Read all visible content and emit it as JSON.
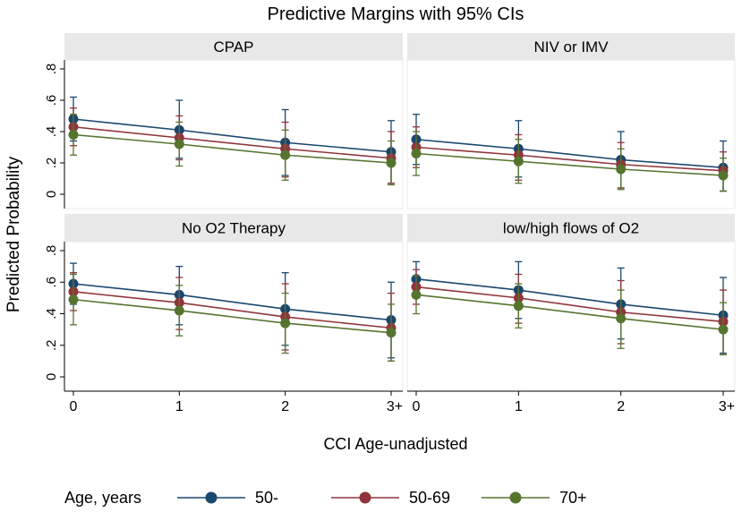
{
  "chart_data": {
    "type": "line",
    "title": "Predictive Margins with 95% CIs",
    "xlabel": "CCI Age-unadjusted",
    "ylabel": "Predicted Probability",
    "categories": [
      "0",
      "1",
      "2",
      "3+"
    ],
    "y_ticks": [
      "0",
      ".2",
      ".4",
      ".6",
      ".8"
    ],
    "y_tick_values": [
      0,
      0.2,
      0.4,
      0.6,
      0.8
    ],
    "ylim": [
      0,
      0.8
    ],
    "legend": {
      "title": "Age, years",
      "position": "bottom",
      "entries": [
        "50-",
        "50-69",
        "70+"
      ]
    },
    "series_style": [
      {
        "name": "50-",
        "color": "#1a476f"
      },
      {
        "name": "50-69",
        "color": "#90353b"
      },
      {
        "name": "70+",
        "color": "#55752f"
      }
    ],
    "panels": [
      {
        "title": "CPAP",
        "series": [
          {
            "name": "50-",
            "values": [
              0.48,
              0.41,
              0.33,
              0.27
            ],
            "ci_low": [
              0.34,
              0.23,
              0.12,
              0.07
            ],
            "ci_high": [
              0.62,
              0.6,
              0.54,
              0.47
            ]
          },
          {
            "name": "50-69",
            "values": [
              0.43,
              0.36,
              0.29,
              0.23
            ],
            "ci_low": [
              0.31,
              0.22,
              0.11,
              0.07
            ],
            "ci_high": [
              0.55,
              0.5,
              0.46,
              0.4
            ]
          },
          {
            "name": "70+",
            "values": [
              0.38,
              0.32,
              0.25,
              0.2
            ],
            "ci_low": [
              0.25,
              0.18,
              0.09,
              0.06
            ],
            "ci_high": [
              0.51,
              0.46,
              0.41,
              0.34
            ]
          }
        ]
      },
      {
        "title": "NIV or IMV",
        "series": [
          {
            "name": "50-",
            "values": [
              0.35,
              0.29,
              0.22,
              0.17
            ],
            "ci_low": [
              0.19,
              0.11,
              0.04,
              0.02
            ],
            "ci_high": [
              0.51,
              0.47,
              0.4,
              0.34
            ]
          },
          {
            "name": "50-69",
            "values": [
              0.3,
              0.25,
              0.19,
              0.15
            ],
            "ci_low": [
              0.17,
              0.09,
              0.04,
              0.02
            ],
            "ci_high": [
              0.43,
              0.38,
              0.33,
              0.27
            ]
          },
          {
            "name": "70+",
            "values": [
              0.26,
              0.21,
              0.16,
              0.12
            ],
            "ci_low": [
              0.12,
              0.07,
              0.03,
              0.02
            ],
            "ci_high": [
              0.4,
              0.35,
              0.29,
              0.23
            ]
          }
        ]
      },
      {
        "title": "No O2 Therapy",
        "series": [
          {
            "name": "50-",
            "values": [
              0.59,
              0.52,
              0.43,
              0.36
            ],
            "ci_low": [
              0.46,
              0.33,
              0.2,
              0.12
            ],
            "ci_high": [
              0.72,
              0.7,
              0.66,
              0.6
            ]
          },
          {
            "name": "50-69",
            "values": [
              0.54,
              0.47,
              0.38,
              0.31
            ],
            "ci_low": [
              0.42,
              0.3,
              0.17,
              0.1
            ],
            "ci_high": [
              0.66,
              0.63,
              0.59,
              0.53
            ]
          },
          {
            "name": "70+",
            "values": [
              0.49,
              0.42,
              0.34,
              0.28
            ],
            "ci_low": [
              0.33,
              0.26,
              0.15,
              0.1
            ],
            "ci_high": [
              0.65,
              0.58,
              0.53,
              0.46
            ]
          }
        ]
      },
      {
        "title": "low/high flows of O2",
        "series": [
          {
            "name": "50-",
            "values": [
              0.62,
              0.55,
              0.46,
              0.39
            ],
            "ci_low": [
              0.51,
              0.37,
              0.24,
              0.15
            ],
            "ci_high": [
              0.73,
              0.73,
              0.69,
              0.63
            ]
          },
          {
            "name": "50-69",
            "values": [
              0.57,
              0.5,
              0.41,
              0.35
            ],
            "ci_low": [
              0.46,
              0.34,
              0.21,
              0.14
            ],
            "ci_high": [
              0.68,
              0.65,
              0.61,
              0.55
            ]
          },
          {
            "name": "70+",
            "values": [
              0.52,
              0.45,
              0.37,
              0.3
            ],
            "ci_low": [
              0.4,
              0.31,
              0.18,
              0.14
            ],
            "ci_high": [
              0.64,
              0.59,
              0.55,
              0.47
            ]
          }
        ]
      }
    ]
  }
}
